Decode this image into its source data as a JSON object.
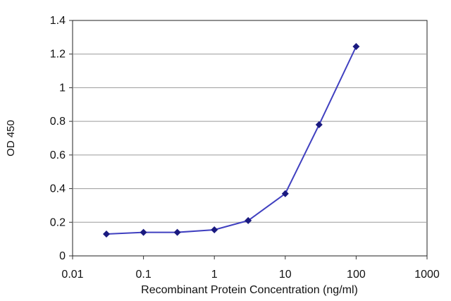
{
  "chart_data": {
    "type": "line",
    "xlabel": "Recombinant Protein Concentration (ng/ml)",
    "ylabel": "OD 450",
    "x_scale": "log",
    "xlim": [
      0.01,
      1000
    ],
    "ylim": [
      0,
      1.4
    ],
    "x_ticks": [
      "0.01",
      "0.1",
      "1",
      "10",
      "100",
      "1000"
    ],
    "y_ticks": [
      "0",
      "0.2",
      "0.4",
      "0.6",
      "0.8",
      "1",
      "1.2",
      "1.4"
    ],
    "grid": "horizontal",
    "legend": "none",
    "series": [
      {
        "x": [
          0.03,
          0.1,
          0.3,
          1,
          3,
          10,
          30,
          100
        ],
        "y": [
          0.13,
          0.14,
          0.14,
          0.155,
          0.21,
          0.37,
          0.78,
          1.245
        ]
      }
    ],
    "colors": {
      "line": "#4040c0",
      "marker": "#1a1a80",
      "grid": "#9a9a9a",
      "axis": "#333333"
    }
  }
}
